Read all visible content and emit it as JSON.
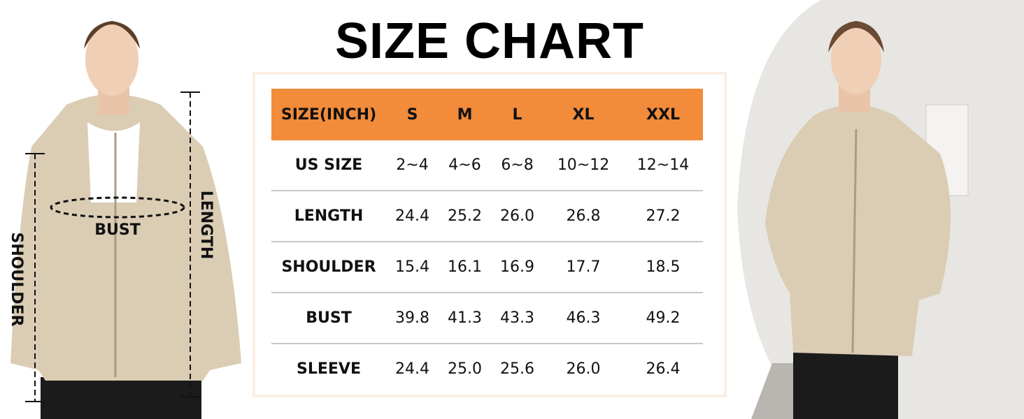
{
  "title": "SIZE CHART",
  "figure": {
    "bust": "BUST",
    "length": "LENGTH",
    "shoulder": "SHOULDER"
  },
  "table": {
    "header": [
      "SIZE(INCH)",
      "S",
      "M",
      "L",
      "XL",
      "XXL"
    ],
    "rows": [
      [
        "US SIZE",
        "2~4",
        "4~6",
        "6~8",
        "10~12",
        "12~14"
      ],
      [
        "LENGTH",
        "24.4",
        "25.2",
        "26.0",
        "26.8",
        "27.2"
      ],
      [
        "SHOULDER",
        "15.4",
        "16.1",
        "16.9",
        "17.7",
        "18.5"
      ],
      [
        "BUST",
        "39.8",
        "41.3",
        "43.3",
        "46.3",
        "49.2"
      ],
      [
        "SLEEVE",
        "24.4",
        "25.0",
        "25.6",
        "26.0",
        "26.4"
      ]
    ]
  }
}
